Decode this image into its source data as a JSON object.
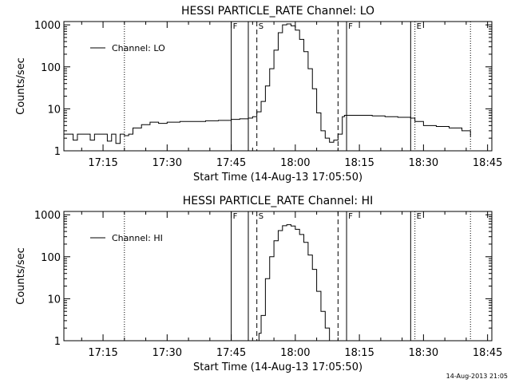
{
  "footer": {
    "timestamp": "14-Aug-2013 21:05"
  },
  "chart_data": [
    {
      "type": "line",
      "title": "HESSI PARTICLE_RATE Channel: LO",
      "xlabel": "Start Time (14-Aug-13 17:05:50)",
      "ylabel": "Counts/sec",
      "y_scale": "log",
      "ylim": [
        1,
        1200
      ],
      "xlim": [
        "17:05:50",
        "18:46:00"
      ],
      "x_ticks": [
        "17:15",
        "17:30",
        "17:45",
        "18:00",
        "18:15",
        "18:30",
        "18:45"
      ],
      "y_ticks": [
        "1",
        "10",
        "100",
        "1000"
      ],
      "legend": "top-left",
      "series": [
        {
          "name": "Channel: LO",
          "x": [
            "17:05:50",
            "17:07",
            "17:08",
            "17:09",
            "17:10",
            "17:11",
            "17:12",
            "17:13",
            "17:14",
            "17:15",
            "17:16",
            "17:17",
            "17:18",
            "17:19",
            "17:20",
            "17:21",
            "17:22",
            "17:24",
            "17:26",
            "17:28",
            "17:30",
            "17:33",
            "17:36",
            "17:39",
            "17:42",
            "17:45",
            "17:47",
            "17:49",
            "17:50",
            "17:51",
            "17:52",
            "17:53",
            "17:54",
            "17:55",
            "17:56",
            "17:57",
            "17:58",
            "17:59",
            "18:00",
            "18:01",
            "18:02",
            "18:03",
            "18:04",
            "18:05",
            "18:06",
            "18:07",
            "18:08",
            "18:09",
            "18:10",
            "18:11",
            "18:11:30",
            "18:12",
            "18:15",
            "18:18",
            "18:21",
            "18:24",
            "18:27",
            "18:28",
            "18:30",
            "18:33",
            "18:36",
            "18:39",
            "18:41"
          ],
          "values": [
            2.5,
            2.5,
            1.8,
            2.5,
            2.5,
            2.5,
            1.8,
            2.5,
            2.5,
            2.5,
            1.7,
            2.5,
            1.5,
            2.5,
            2.3,
            2.5,
            3.5,
            4.2,
            4.8,
            4.5,
            4.8,
            5.0,
            5.0,
            5.2,
            5.3,
            5.6,
            5.8,
            6.0,
            6.5,
            8.5,
            15,
            35,
            90,
            250,
            650,
            1000,
            1050,
            950,
            750,
            450,
            230,
            90,
            30,
            8,
            3,
            2,
            1.6,
            1.8,
            2.5,
            6.5,
            7.0,
            7.0,
            7.0,
            6.8,
            6.5,
            6.3,
            6.0,
            5.0,
            4.0,
            3.8,
            3.5,
            3.0,
            2.2
          ]
        }
      ],
      "markers": [
        {
          "label": "",
          "x": "17:20",
          "style": "dotted"
        },
        {
          "label": "F",
          "x": "17:45",
          "style": "solid"
        },
        {
          "label": "",
          "x": "17:49",
          "style": "solid"
        },
        {
          "label": "S",
          "x": "17:51",
          "style": "dashed"
        },
        {
          "label": "",
          "x": "18:10",
          "style": "dashed"
        },
        {
          "label": "F",
          "x": "18:12",
          "style": "solid"
        },
        {
          "label": "",
          "x": "18:27",
          "style": "solid"
        },
        {
          "label": "E",
          "x": "18:28",
          "style": "dotted"
        },
        {
          "label": "",
          "x": "18:41",
          "style": "dotted"
        }
      ]
    },
    {
      "type": "line",
      "title": "HESSI PARTICLE_RATE Channel: HI",
      "xlabel": "Start Time (14-Aug-13 17:05:50)",
      "ylabel": "Counts/sec",
      "y_scale": "log",
      "ylim": [
        1,
        1200
      ],
      "xlim": [
        "17:05:50",
        "18:46:00"
      ],
      "x_ticks": [
        "17:15",
        "17:30",
        "17:45",
        "18:00",
        "18:15",
        "18:30",
        "18:45"
      ],
      "y_ticks": [
        "1",
        "10",
        "100",
        "1000"
      ],
      "legend": "top-left",
      "series": [
        {
          "name": "Channel: HI",
          "x": [
            "17:51:00",
            "17:51:30",
            "17:52",
            "17:53",
            "17:54",
            "17:55",
            "17:56",
            "17:57",
            "17:58",
            "17:59",
            "18:00",
            "18:01",
            "18:02",
            "18:03",
            "18:04",
            "18:05",
            "18:06",
            "18:07",
            "18:08"
          ],
          "values": [
            1,
            1.5,
            4,
            30,
            100,
            240,
            420,
            550,
            580,
            540,
            450,
            340,
            220,
            110,
            50,
            15,
            5,
            2,
            1
          ]
        }
      ],
      "markers": [
        {
          "label": "",
          "x": "17:20",
          "style": "dotted"
        },
        {
          "label": "F",
          "x": "17:45",
          "style": "solid"
        },
        {
          "label": "",
          "x": "17:49",
          "style": "solid"
        },
        {
          "label": "S",
          "x": "17:51",
          "style": "dashed"
        },
        {
          "label": "",
          "x": "18:10",
          "style": "dashed"
        },
        {
          "label": "F",
          "x": "18:12",
          "style": "solid"
        },
        {
          "label": "",
          "x": "18:27",
          "style": "solid"
        },
        {
          "label": "E",
          "x": "18:28",
          "style": "dotted"
        },
        {
          "label": "",
          "x": "18:41",
          "style": "dotted"
        }
      ]
    }
  ]
}
